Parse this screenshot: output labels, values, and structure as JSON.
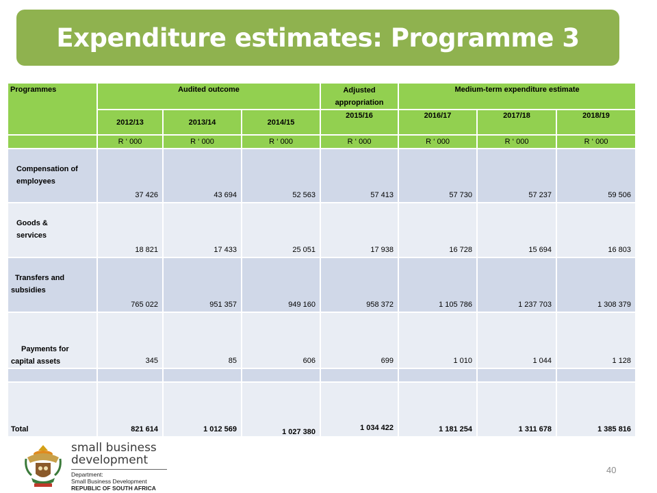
{
  "title": "Expenditure estimates: Programme 3",
  "table": {
    "col_programmes": "Programmes",
    "group_audited": "Audited outcome",
    "group_adjusted": "Adjusted appropriation",
    "group_mtef": "Medium-term expenditure estimate",
    "years": [
      "2012/13",
      "2013/14",
      "2014/15",
      "2015/16",
      "2016/17",
      "2017/18",
      "2018/19"
    ],
    "units": [
      "R ‘ 000",
      "R ‘ 000",
      "R ‘ 000",
      "R ‘ 000",
      "R ‘ 000",
      "R ‘ 000",
      "R ‘ 000"
    ],
    "rows": [
      {
        "label": "Compensation of employees",
        "values": [
          "37 426",
          "43 694",
          "52 563",
          "57 413",
          "57 730",
          "57 237",
          "59 506"
        ]
      },
      {
        "label": "Goods & services",
        "values": [
          "18 821",
          "17 433",
          "25 051",
          "17 938",
          "16 728",
          "15 694",
          "16 803"
        ]
      },
      {
        "label": "Transfers and subsidies",
        "values": [
          "765 022",
          "951 357",
          "949 160",
          "958 372",
          "1 105 786",
          "1 237 703",
          "1 308 379"
        ]
      },
      {
        "label": "Payments for capital assets",
        "values": [
          "345",
          "85",
          "606",
          "699",
          "1 010",
          "1 044",
          "1 128"
        ]
      }
    ],
    "total": {
      "label": "Total",
      "values": [
        "821 614",
        "1 012 569",
        "1 027 380",
        "1 034 422",
        "1 181 254",
        "1 311 678",
        "1 385 816"
      ]
    }
  },
  "logo": {
    "line1": "small business",
    "line2": "development",
    "dept1": "Department:",
    "dept2": "Small Business Development",
    "dept3": "REPUBLIC OF SOUTH AFRICA"
  },
  "page_number": "40",
  "colors": {
    "title_bg": "#8fb24f",
    "header_bg": "#92d050",
    "row_dark": "#d0d8e8",
    "row_light": "#e9edf4"
  }
}
